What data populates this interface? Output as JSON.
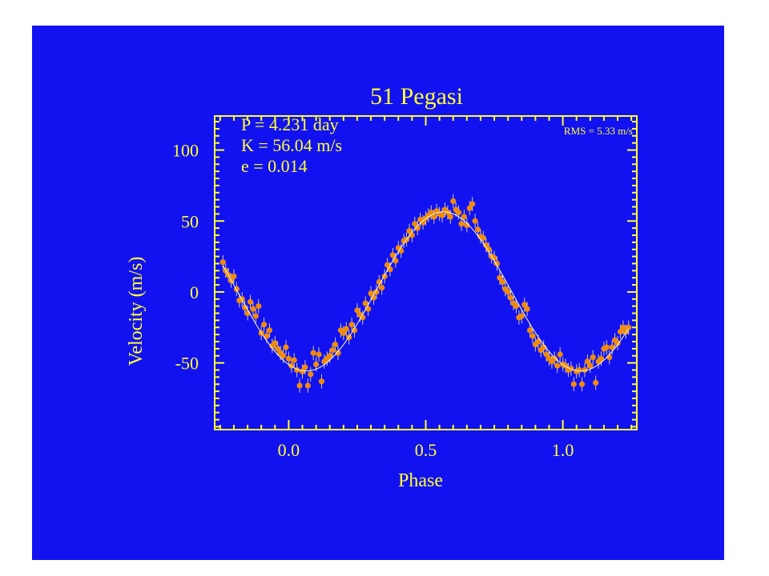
{
  "chart_data": {
    "type": "scatter",
    "title": "51 Pegasi",
    "xlabel": "Phase",
    "ylabel": "Velocity  (m/s)",
    "xlim": [
      -0.27,
      1.27
    ],
    "ylim": [
      -97,
      124
    ],
    "xticks": [
      0.0,
      0.5,
      1.0
    ],
    "xtick_labels": [
      "0.0",
      "0.5",
      "1.0"
    ],
    "yticks": [
      -50,
      0,
      50,
      100
    ],
    "ytick_labels": [
      "-50",
      "0",
      "50",
      "100"
    ],
    "grid": false,
    "legend": "none",
    "annotations": [
      "P = 4.231 day",
      "K = 56.04 m/s",
      "e = 0.014"
    ],
    "rms_label": "RMS = 5.33 m/s",
    "model": {
      "period_days": 4.231,
      "K_ms": 56.04,
      "e": 0.014
    },
    "colors": {
      "background": "#1212f0",
      "axes": "#ffff33",
      "points": "#f08a0c",
      "error_bars": "#c8c8c8",
      "fit": "#ffffd0"
    },
    "series": [
      {
        "marker": "filled-circle-with-error-bars",
        "points": [
          [
            -0.24,
            21,
            5
          ],
          [
            -0.23,
            15,
            5
          ],
          [
            -0.22,
            12,
            5
          ],
          [
            -0.21,
            8,
            5
          ],
          [
            -0.2,
            11,
            5
          ],
          [
            -0.19,
            2,
            5
          ],
          [
            -0.18,
            -6,
            5
          ],
          [
            -0.17,
            -5,
            5
          ],
          [
            -0.16,
            -11,
            5
          ],
          [
            -0.15,
            -15,
            5
          ],
          [
            -0.14,
            -7,
            5
          ],
          [
            -0.13,
            -12,
            5
          ],
          [
            -0.12,
            -17,
            5
          ],
          [
            -0.11,
            -10,
            5
          ],
          [
            -0.1,
            -29,
            5
          ],
          [
            -0.09,
            -23,
            5
          ],
          [
            -0.08,
            -31,
            5
          ],
          [
            -0.07,
            -27,
            5
          ],
          [
            -0.06,
            -38,
            5
          ],
          [
            -0.05,
            -36,
            5
          ],
          [
            -0.04,
            -40,
            5
          ],
          [
            -0.03,
            -43,
            5
          ],
          [
            -0.02,
            -45,
            5
          ],
          [
            -0.01,
            -39,
            5
          ],
          [
            0.0,
            -47,
            5
          ],
          [
            0.01,
            -52,
            5
          ],
          [
            0.02,
            -48,
            5
          ],
          [
            0.03,
            -55,
            5
          ],
          [
            0.04,
            -66,
            5
          ],
          [
            0.05,
            -56,
            5
          ],
          [
            0.06,
            -53,
            5
          ],
          [
            0.07,
            -66,
            5
          ],
          [
            0.08,
            -58,
            5
          ],
          [
            0.09,
            -43,
            5
          ],
          [
            0.1,
            -51,
            5
          ],
          [
            0.11,
            -44,
            5
          ],
          [
            0.12,
            -63,
            5
          ],
          [
            0.13,
            -49,
            5
          ],
          [
            0.14,
            -47,
            5
          ],
          [
            0.15,
            -45,
            5
          ],
          [
            0.16,
            -41,
            5
          ],
          [
            0.17,
            -37,
            5
          ],
          [
            0.18,
            -43,
            5
          ],
          [
            0.19,
            -27,
            5
          ],
          [
            0.2,
            -29,
            5
          ],
          [
            0.21,
            -26,
            5
          ],
          [
            0.22,
            -32,
            5
          ],
          [
            0.23,
            -23,
            5
          ],
          [
            0.24,
            -27,
            5
          ],
          [
            0.25,
            -13,
            5
          ],
          [
            0.26,
            -16,
            5
          ],
          [
            0.27,
            -18,
            5
          ],
          [
            0.28,
            -8,
            5
          ],
          [
            0.29,
            -12,
            5
          ],
          [
            0.3,
            -1,
            5
          ],
          [
            0.31,
            -4,
            5
          ],
          [
            0.32,
            0,
            5
          ],
          [
            0.33,
            7,
            5
          ],
          [
            0.34,
            3,
            5
          ],
          [
            0.35,
            11,
            5
          ],
          [
            0.36,
            19,
            5
          ],
          [
            0.37,
            16,
            5
          ],
          [
            0.38,
            26,
            5
          ],
          [
            0.39,
            22,
            5
          ],
          [
            0.4,
            31,
            5
          ],
          [
            0.41,
            29,
            5
          ],
          [
            0.42,
            36,
            5
          ],
          [
            0.43,
            37,
            5
          ],
          [
            0.44,
            43,
            5
          ],
          [
            0.45,
            40,
            5
          ],
          [
            0.46,
            48,
            5
          ],
          [
            0.47,
            45,
            5
          ],
          [
            0.48,
            51,
            5
          ],
          [
            0.49,
            49,
            5
          ],
          [
            0.5,
            52,
            5
          ],
          [
            0.51,
            54,
            5
          ],
          [
            0.52,
            56,
            5
          ],
          [
            0.53,
            53,
            5
          ],
          [
            0.54,
            57,
            5
          ],
          [
            0.55,
            55,
            5
          ],
          [
            0.56,
            54,
            5
          ],
          [
            0.57,
            58,
            5
          ],
          [
            0.58,
            56,
            5
          ],
          [
            0.59,
            53,
            5
          ],
          [
            0.6,
            64,
            5
          ],
          [
            0.61,
            58,
            5
          ],
          [
            0.62,
            56,
            5
          ],
          [
            0.63,
            48,
            5
          ],
          [
            0.64,
            53,
            5
          ],
          [
            0.65,
            47,
            5
          ],
          [
            0.66,
            59,
            5
          ],
          [
            0.67,
            62,
            5
          ],
          [
            0.68,
            50,
            5
          ],
          [
            0.69,
            44,
            5
          ],
          [
            0.7,
            39,
            5
          ],
          [
            0.71,
            38,
            5
          ],
          [
            0.72,
            33,
            5
          ],
          [
            0.73,
            30,
            5
          ],
          [
            0.74,
            25,
            5
          ],
          [
            0.75,
            24,
            5
          ],
          [
            0.76,
            20,
            5
          ],
          [
            0.77,
            10,
            5
          ],
          [
            0.78,
            7,
            5
          ],
          [
            0.79,
            2,
            5
          ],
          [
            0.8,
            0,
            5
          ],
          [
            0.81,
            -4,
            5
          ],
          [
            0.82,
            -8,
            5
          ],
          [
            0.83,
            -10,
            5
          ],
          [
            0.84,
            -18,
            5
          ],
          [
            0.85,
            -17,
            5
          ],
          [
            0.86,
            -9,
            5
          ],
          [
            0.87,
            -12,
            5
          ],
          [
            0.88,
            -27,
            5
          ],
          [
            0.89,
            -31,
            5
          ],
          [
            0.9,
            -37,
            5
          ],
          [
            0.91,
            -35,
            5
          ],
          [
            0.92,
            -41,
            5
          ],
          [
            0.93,
            -39,
            5
          ],
          [
            0.94,
            -44,
            5
          ],
          [
            0.95,
            -47,
            5
          ],
          [
            0.96,
            -49,
            5
          ],
          [
            0.97,
            -47,
            5
          ],
          [
            0.98,
            -52,
            5
          ],
          [
            0.99,
            -44,
            5
          ],
          [
            1.0,
            -51,
            5
          ],
          [
            1.01,
            -52,
            5
          ],
          [
            1.02,
            -55,
            5
          ],
          [
            1.03,
            -54,
            5
          ],
          [
            1.04,
            -65,
            5
          ],
          [
            1.05,
            -56,
            5
          ],
          [
            1.06,
            -55,
            5
          ],
          [
            1.07,
            -65,
            5
          ],
          [
            1.08,
            -55,
            5
          ],
          [
            1.09,
            -49,
            5
          ],
          [
            1.1,
            -52,
            5
          ],
          [
            1.11,
            -46,
            5
          ],
          [
            1.12,
            -64,
            5
          ],
          [
            1.13,
            -49,
            5
          ],
          [
            1.14,
            -47,
            5
          ],
          [
            1.15,
            -40,
            5
          ],
          [
            1.16,
            -39,
            5
          ],
          [
            1.17,
            -46,
            5
          ],
          [
            1.18,
            -39,
            5
          ],
          [
            1.19,
            -34,
            5
          ],
          [
            1.2,
            -36,
            5
          ],
          [
            1.21,
            -28,
            5
          ],
          [
            1.22,
            -25,
            5
          ],
          [
            1.23,
            -28,
            5
          ],
          [
            1.24,
            -25,
            5
          ]
        ]
      }
    ]
  }
}
